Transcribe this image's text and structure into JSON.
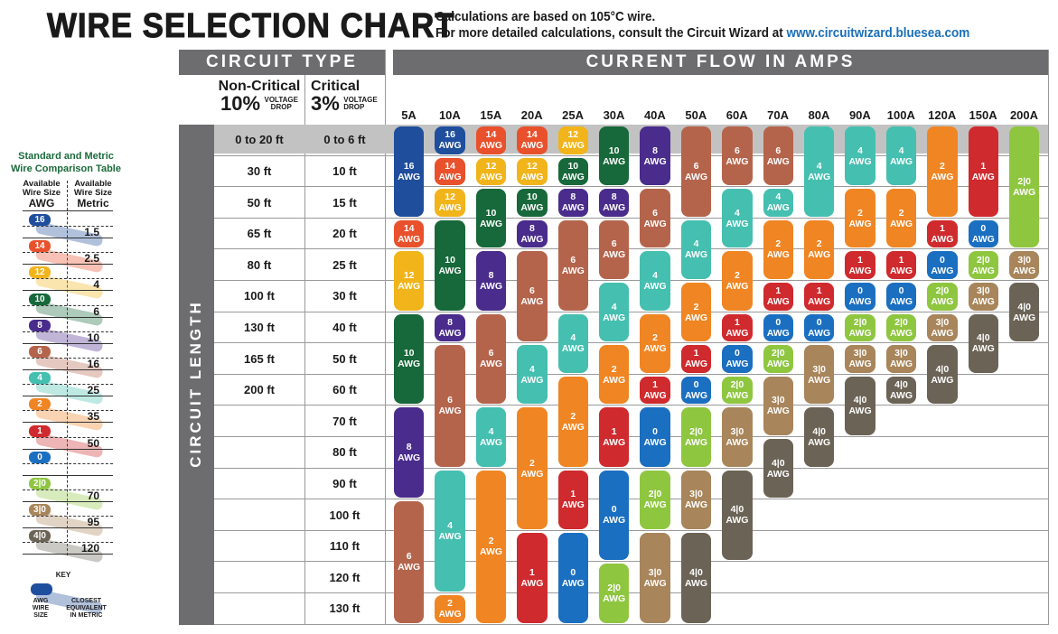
{
  "title": "WIRE SELECTION CHART",
  "subtitle_line1": "Calculations are based on 105°C wire.",
  "subtitle_line2_prefix": "For more detailed calculations, consult the Circuit Wizard at",
  "subtitle_link": "www.circuitwizard.bluesea.com",
  "circuit_type_label": "CIRCUIT TYPE",
  "current_flow_label": "CURRENT FLOW IN AMPS",
  "circuit_length_label": "CIRCUIT LENGTH",
  "non_critical": {
    "name": "Non-Critical",
    "pct": "10%",
    "vd1": "VOLTAGE",
    "vd2": "DROP"
  },
  "critical": {
    "name": "Critical",
    "pct": "3%",
    "vd1": "VOLTAGE",
    "vd2": "DROP"
  },
  "comparison": {
    "title1": "Standard and Metric",
    "title2": "Wire Comparison Table",
    "awg_h1": "Available",
    "awg_h2": "Wire Size",
    "awg_h3": "AWG",
    "met_h1": "Available",
    "met_h2": "Wire Size",
    "met_h3": "Metric",
    "rows": [
      {
        "awg": "16",
        "metric": "1.5"
      },
      {
        "awg": "14",
        "metric": "2.5"
      },
      {
        "awg": "12",
        "metric": "4"
      },
      {
        "awg": "10",
        "metric": "6"
      },
      {
        "awg": "8",
        "metric": "10"
      },
      {
        "awg": "6",
        "metric": "16"
      },
      {
        "awg": "4",
        "metric": "25"
      },
      {
        "awg": "2",
        "metric": "35"
      },
      {
        "awg": "1",
        "metric": "50"
      },
      {
        "awg": "0",
        "metric": ""
      },
      {
        "awg": "2|0",
        "metric": "70"
      },
      {
        "awg": "3|0",
        "metric": "95"
      },
      {
        "awg": "4|0",
        "metric": "120"
      }
    ],
    "key_label": "KEY",
    "key_left": [
      "AWG",
      "WIRE",
      "SIZE"
    ],
    "key_right": [
      "CLOSEST",
      "EQUIVALENT",
      "IN METRIC"
    ]
  },
  "chart_data": {
    "type": "table",
    "title": "WIRE SELECTION CHART",
    "row_labels_non_critical": [
      "0 to 20 ft",
      "30 ft",
      "50 ft",
      "65 ft",
      "80 ft",
      "100 ft",
      "130 ft",
      "165 ft",
      "200 ft",
      "",
      "",
      "",
      "",
      "",
      "",
      ""
    ],
    "row_labels_critical": [
      "0 to 6 ft",
      "10 ft",
      "15 ft",
      "20 ft",
      "25 ft",
      "30 ft",
      "40 ft",
      "50 ft",
      "60 ft",
      "70 ft",
      "80 ft",
      "90 ft",
      "100 ft",
      "110 ft",
      "120 ft",
      "130 ft"
    ],
    "unit_label": "AWG",
    "awg_colors": {
      "16": "#1f4e9c",
      "14": "#e8512c",
      "12": "#f1b41b",
      "10": "#17683a",
      "8": "#4a2c8c",
      "6": "#b5644c",
      "4": "#45bfb0",
      "2": "#f08523",
      "1": "#cf2a2e",
      "0": "#1b6fc0",
      "2|0": "#8ec640",
      "3|0": "#a8855a",
      "4|0": "#6b6356"
    },
    "columns": [
      {
        "amps": "5A",
        "segments": [
          {
            "awg": "16",
            "rows": [
              0,
              2
            ]
          },
          {
            "awg": "14",
            "rows": [
              3,
              3
            ]
          },
          {
            "awg": "12",
            "rows": [
              4,
              5
            ]
          },
          {
            "awg": "10",
            "rows": [
              6,
              8
            ]
          },
          {
            "awg": "8",
            "rows": [
              9,
              11
            ]
          },
          {
            "awg": "6",
            "rows": [
              12,
              15
            ]
          }
        ]
      },
      {
        "amps": "10A",
        "segments": [
          {
            "awg": "16",
            "rows": [
              0,
              0
            ]
          },
          {
            "awg": "14",
            "rows": [
              1,
              1
            ]
          },
          {
            "awg": "12",
            "rows": [
              2,
              2
            ]
          },
          {
            "awg": "10",
            "rows": [
              3,
              5
            ]
          },
          {
            "awg": "8",
            "rows": [
              6,
              6
            ]
          },
          {
            "awg": "6",
            "rows": [
              7,
              10
            ]
          },
          {
            "awg": "4",
            "rows": [
              11,
              14
            ]
          },
          {
            "awg": "2",
            "rows": [
              15,
              15
            ]
          }
        ]
      },
      {
        "amps": "15A",
        "segments": [
          {
            "awg": "14",
            "rows": [
              0,
              0
            ]
          },
          {
            "awg": "12",
            "rows": [
              1,
              1
            ]
          },
          {
            "awg": "10",
            "rows": [
              2,
              3
            ]
          },
          {
            "awg": "8",
            "rows": [
              4,
              5
            ]
          },
          {
            "awg": "6",
            "rows": [
              6,
              8
            ]
          },
          {
            "awg": "4",
            "rows": [
              9,
              10
            ]
          },
          {
            "awg": "2",
            "rows": [
              11,
              15
            ]
          }
        ]
      },
      {
        "amps": "20A",
        "segments": [
          {
            "awg": "14",
            "rows": [
              0,
              0
            ]
          },
          {
            "awg": "12",
            "rows": [
              1,
              1
            ]
          },
          {
            "awg": "10",
            "rows": [
              2,
              2
            ]
          },
          {
            "awg": "8",
            "rows": [
              3,
              3
            ]
          },
          {
            "awg": "6",
            "rows": [
              4,
              6
            ]
          },
          {
            "awg": "4",
            "rows": [
              7,
              8
            ]
          },
          {
            "awg": "2",
            "rows": [
              9,
              12
            ]
          },
          {
            "awg": "1",
            "rows": [
              13,
              15
            ]
          }
        ]
      },
      {
        "amps": "25A",
        "segments": [
          {
            "awg": "12",
            "rows": [
              0,
              0
            ]
          },
          {
            "awg": "10",
            "rows": [
              1,
              1
            ]
          },
          {
            "awg": "8",
            "rows": [
              2,
              2
            ]
          },
          {
            "awg": "6",
            "rows": [
              3,
              5
            ]
          },
          {
            "awg": "4",
            "rows": [
              6,
              7
            ]
          },
          {
            "awg": "2",
            "rows": [
              8,
              10
            ]
          },
          {
            "awg": "1",
            "rows": [
              11,
              12
            ]
          },
          {
            "awg": "0",
            "rows": [
              13,
              15
            ]
          }
        ]
      },
      {
        "amps": "30A",
        "segments": [
          {
            "awg": "10",
            "rows": [
              0,
              1
            ]
          },
          {
            "awg": "8",
            "rows": [
              2,
              2
            ]
          },
          {
            "awg": "6",
            "rows": [
              3,
              4
            ]
          },
          {
            "awg": "4",
            "rows": [
              5,
              6
            ]
          },
          {
            "awg": "2",
            "rows": [
              7,
              8
            ]
          },
          {
            "awg": "1",
            "rows": [
              9,
              10
            ]
          },
          {
            "awg": "0",
            "rows": [
              11,
              13
            ]
          },
          {
            "awg": "2|0",
            "rows": [
              14,
              15
            ]
          }
        ]
      },
      {
        "amps": "40A",
        "segments": [
          {
            "awg": "8",
            "rows": [
              0,
              1
            ]
          },
          {
            "awg": "6",
            "rows": [
              2,
              3
            ]
          },
          {
            "awg": "4",
            "rows": [
              4,
              5
            ]
          },
          {
            "awg": "2",
            "rows": [
              6,
              7
            ]
          },
          {
            "awg": "1",
            "rows": [
              8,
              8
            ]
          },
          {
            "awg": "0",
            "rows": [
              9,
              10
            ]
          },
          {
            "awg": "2|0",
            "rows": [
              11,
              12
            ]
          },
          {
            "awg": "3|0",
            "rows": [
              13,
              15
            ]
          }
        ]
      },
      {
        "amps": "50A",
        "segments": [
          {
            "awg": "6",
            "rows": [
              0,
              2
            ]
          },
          {
            "awg": "4",
            "rows": [
              3,
              4
            ]
          },
          {
            "awg": "2",
            "rows": [
              5,
              6
            ]
          },
          {
            "awg": "1",
            "rows": [
              7,
              7
            ]
          },
          {
            "awg": "0",
            "rows": [
              8,
              8
            ]
          },
          {
            "awg": "2|0",
            "rows": [
              9,
              10
            ]
          },
          {
            "awg": "3|0",
            "rows": [
              11,
              12
            ]
          },
          {
            "awg": "4|0",
            "rows": [
              13,
              15
            ]
          }
        ]
      },
      {
        "amps": "60A",
        "segments": [
          {
            "awg": "6",
            "rows": [
              0,
              1
            ]
          },
          {
            "awg": "4",
            "rows": [
              2,
              3
            ]
          },
          {
            "awg": "2",
            "rows": [
              4,
              5
            ]
          },
          {
            "awg": "1",
            "rows": [
              6,
              6
            ]
          },
          {
            "awg": "0",
            "rows": [
              7,
              7
            ]
          },
          {
            "awg": "2|0",
            "rows": [
              8,
              8
            ]
          },
          {
            "awg": "3|0",
            "rows": [
              9,
              10
            ]
          },
          {
            "awg": "4|0",
            "rows": [
              11,
              13
            ]
          }
        ]
      },
      {
        "amps": "70A",
        "segments": [
          {
            "awg": "6",
            "rows": [
              0,
              1
            ]
          },
          {
            "awg": "4",
            "rows": [
              2,
              2
            ]
          },
          {
            "awg": "2",
            "rows": [
              3,
              4
            ]
          },
          {
            "awg": "1",
            "rows": [
              5,
              5
            ]
          },
          {
            "awg": "0",
            "rows": [
              6,
              6
            ]
          },
          {
            "awg": "2|0",
            "rows": [
              7,
              7
            ]
          },
          {
            "awg": "3|0",
            "rows": [
              8,
              9
            ]
          },
          {
            "awg": "4|0",
            "rows": [
              10,
              11
            ]
          }
        ]
      },
      {
        "amps": "80A",
        "segments": [
          {
            "awg": "4",
            "rows": [
              0,
              2
            ]
          },
          {
            "awg": "2",
            "rows": [
              3,
              4
            ]
          },
          {
            "awg": "1",
            "rows": [
              5,
              5
            ]
          },
          {
            "awg": "0",
            "rows": [
              6,
              6
            ]
          },
          {
            "awg": "3|0",
            "rows": [
              7,
              8
            ]
          },
          {
            "awg": "4|0",
            "rows": [
              9,
              10
            ]
          }
        ]
      },
      {
        "amps": "90A",
        "segments": [
          {
            "awg": "4",
            "rows": [
              0,
              1
            ]
          },
          {
            "awg": "2",
            "rows": [
              2,
              3
            ]
          },
          {
            "awg": "1",
            "rows": [
              4,
              4
            ]
          },
          {
            "awg": "0",
            "rows": [
              5,
              5
            ]
          },
          {
            "awg": "2|0",
            "rows": [
              6,
              6
            ]
          },
          {
            "awg": "3|0",
            "rows": [
              7,
              7
            ]
          },
          {
            "awg": "4|0",
            "rows": [
              8,
              9
            ]
          }
        ]
      },
      {
        "amps": "100A",
        "segments": [
          {
            "awg": "4",
            "rows": [
              0,
              1
            ]
          },
          {
            "awg": "2",
            "rows": [
              2,
              3
            ]
          },
          {
            "awg": "1",
            "rows": [
              4,
              4
            ]
          },
          {
            "awg": "0",
            "rows": [
              5,
              5
            ]
          },
          {
            "awg": "2|0",
            "rows": [
              6,
              6
            ]
          },
          {
            "awg": "3|0",
            "rows": [
              7,
              7
            ]
          },
          {
            "awg": "4|0",
            "rows": [
              8,
              8
            ]
          }
        ]
      },
      {
        "amps": "120A",
        "segments": [
          {
            "awg": "2",
            "rows": [
              0,
              2
            ]
          },
          {
            "awg": "1",
            "rows": [
              3,
              3
            ]
          },
          {
            "awg": "0",
            "rows": [
              4,
              4
            ]
          },
          {
            "awg": "2|0",
            "rows": [
              5,
              5
            ]
          },
          {
            "awg": "3|0",
            "rows": [
              6,
              6
            ]
          },
          {
            "awg": "4|0",
            "rows": [
              7,
              8
            ]
          }
        ]
      },
      {
        "amps": "150A",
        "segments": [
          {
            "awg": "1",
            "rows": [
              0,
              2
            ]
          },
          {
            "awg": "0",
            "rows": [
              3,
              3
            ]
          },
          {
            "awg": "2|0",
            "rows": [
              4,
              4
            ]
          },
          {
            "awg": "3|0",
            "rows": [
              5,
              5
            ]
          },
          {
            "awg": "4|0",
            "rows": [
              6,
              7
            ]
          }
        ]
      },
      {
        "amps": "200A",
        "segments": [
          {
            "awg": "2|0",
            "rows": [
              0,
              3
            ]
          },
          {
            "awg": "3|0",
            "rows": [
              4,
              4
            ]
          },
          {
            "awg": "4|0",
            "rows": [
              5,
              6
            ]
          }
        ]
      }
    ]
  }
}
